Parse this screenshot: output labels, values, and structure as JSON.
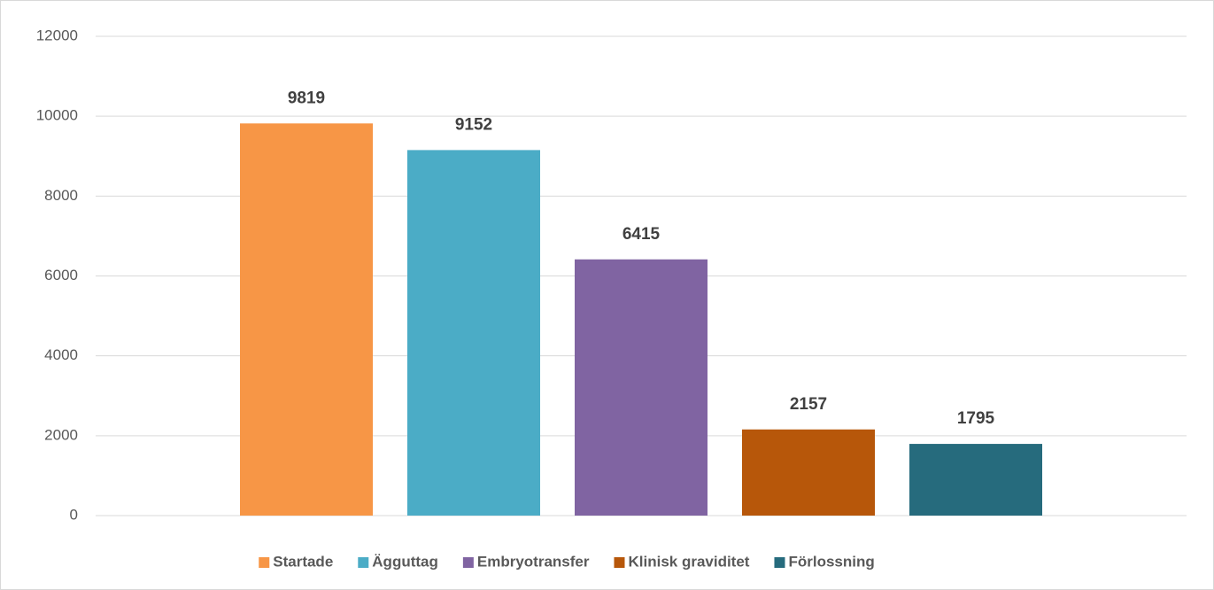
{
  "chart_data": {
    "type": "bar",
    "categories": [
      null
    ],
    "series": [
      {
        "name": "Startade",
        "color": "#f79646",
        "values": [
          9819
        ]
      },
      {
        "name": "Ägguttag",
        "color": "#4bacc6",
        "values": [
          9152
        ]
      },
      {
        "name": "Embryotransfer",
        "color": "#8064a2",
        "values": [
          6415
        ]
      },
      {
        "name": "Klinisk graviditet",
        "color": "#b7570a",
        "values": [
          2157
        ]
      },
      {
        "name": "Förlossning",
        "color": "#266b7d",
        "values": [
          1795
        ]
      }
    ],
    "ylim": [
      0,
      12000
    ],
    "yticks": [
      0,
      2000,
      4000,
      6000,
      8000,
      10000,
      12000
    ],
    "grid": true,
    "legend": "bottom",
    "data_labels": true
  }
}
